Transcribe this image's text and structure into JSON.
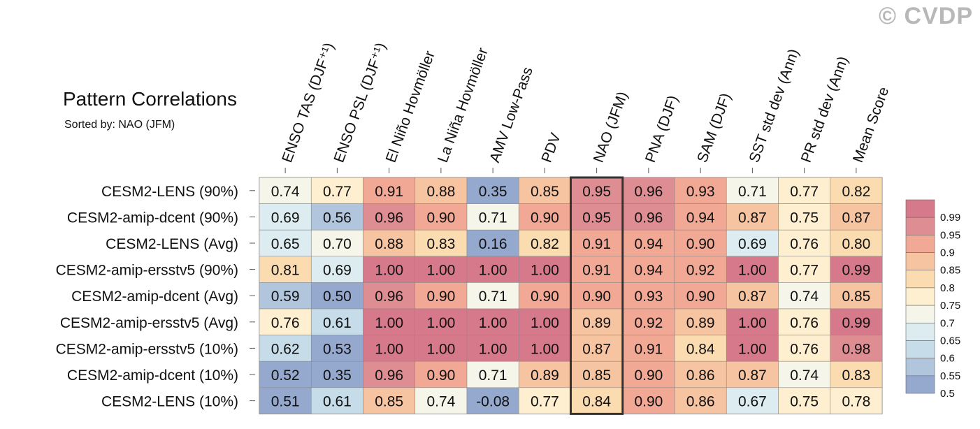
{
  "watermark": "© CVDP",
  "chart_data": {
    "type": "heatmap",
    "title": "Pattern Correlations",
    "subtitle": "Sorted by: NAO (JFM)",
    "highlighted_column": "NAO (JFM)",
    "columns": [
      "ENSO TAS (DJF⁺¹)",
      "ENSO PSL (DJF⁺¹)",
      "El Niño Hovmöller",
      "La Niña Hovmöller",
      "AMV Low-Pass",
      "PDV",
      "NAO (JFM)",
      "PNA (DJF)",
      "SAM (DJF)",
      "SST std dev (Ann)",
      "PR std dev (Ann)",
      "Mean Score"
    ],
    "rows": [
      {
        "label": "CESM2-LENS (90%)",
        "values": [
          0.74,
          0.77,
          0.91,
          0.88,
          0.35,
          0.85,
          0.95,
          0.96,
          0.93,
          0.71,
          0.77,
          0.82
        ],
        "text": [
          "0.74",
          "0.77",
          "0.91",
          "0.88",
          "0.35",
          "0.85",
          "0.95",
          "0.96",
          "0.93",
          "0.71",
          "0.77",
          "0.82"
        ]
      },
      {
        "label": "CESM2-amip-dcent (90%)",
        "values": [
          0.69,
          0.56,
          0.96,
          0.9,
          0.71,
          0.9,
          0.95,
          0.96,
          0.94,
          0.87,
          0.75,
          0.87
        ],
        "text": [
          "0.69",
          "0.56",
          "0.96",
          "0.90",
          "0.71",
          "0.90",
          "0.95",
          "0.96",
          "0.94",
          "0.87",
          "0.75",
          "0.87"
        ]
      },
      {
        "label": "CESM2-LENS (Avg)",
        "values": [
          0.65,
          0.7,
          0.88,
          0.83,
          0.16,
          0.82,
          0.91,
          0.94,
          0.9,
          0.69,
          0.76,
          0.8
        ],
        "text": [
          "0.65",
          "0.70",
          "0.88",
          "0.83",
          "0.16",
          "0.82",
          "0.91",
          "0.94",
          "0.90",
          "0.69",
          "0.76",
          "0.80"
        ]
      },
      {
        "label": "CESM2-amip-ersstv5 (90%)",
        "values": [
          0.81,
          0.69,
          1.0,
          1.0,
          1.0,
          1.0,
          0.91,
          0.94,
          0.92,
          1.0,
          0.77,
          0.99
        ],
        "text": [
          "0.81",
          "0.69",
          "1.00",
          "1.00",
          "1.00",
          "1.00",
          "0.91",
          "0.94",
          "0.92",
          "1.00",
          "0.77",
          "0.99"
        ]
      },
      {
        "label": "CESM2-amip-dcent (Avg)",
        "values": [
          0.59,
          0.5,
          0.96,
          0.9,
          0.71,
          0.9,
          0.9,
          0.93,
          0.9,
          0.87,
          0.74,
          0.85
        ],
        "text": [
          "0.59",
          "0.50",
          "0.96",
          "0.90",
          "0.71",
          "0.90",
          "0.90",
          "0.93",
          "0.90",
          "0.87",
          "0.74",
          "0.85"
        ]
      },
      {
        "label": "CESM2-amip-ersstv5 (Avg)",
        "values": [
          0.76,
          0.61,
          1.0,
          1.0,
          1.0,
          1.0,
          0.89,
          0.92,
          0.89,
          1.0,
          0.76,
          0.99
        ],
        "text": [
          "0.76",
          "0.61",
          "1.00",
          "1.00",
          "1.00",
          "1.00",
          "0.89",
          "0.92",
          "0.89",
          "1.00",
          "0.76",
          "0.99"
        ]
      },
      {
        "label": "CESM2-amip-ersstv5 (10%)",
        "values": [
          0.62,
          0.53,
          1.0,
          1.0,
          1.0,
          1.0,
          0.87,
          0.91,
          0.84,
          1.0,
          0.76,
          0.98
        ],
        "text": [
          "0.62",
          "0.53",
          "1.00",
          "1.00",
          "1.00",
          "1.00",
          "0.87",
          "0.91",
          "0.84",
          "1.00",
          "0.76",
          "0.98"
        ]
      },
      {
        "label": "CESM2-amip-dcent (10%)",
        "values": [
          0.52,
          0.35,
          0.96,
          0.9,
          0.71,
          0.89,
          0.85,
          0.9,
          0.86,
          0.87,
          0.74,
          0.83
        ],
        "text": [
          "0.52",
          "0.35",
          "0.96",
          "0.90",
          "0.71",
          "0.89",
          "0.85",
          "0.90",
          "0.86",
          "0.87",
          "0.74",
          "0.83"
        ]
      },
      {
        "label": "CESM2-LENS (10%)",
        "values": [
          0.51,
          0.61,
          0.85,
          0.74,
          -0.08,
          0.77,
          0.84,
          0.9,
          0.86,
          0.67,
          0.75,
          0.78
        ],
        "text": [
          "0.51",
          "0.61",
          "0.85",
          "0.74",
          "-0.08",
          "0.77",
          "0.84",
          "0.90",
          "0.86",
          "0.67",
          "0.75",
          "0.78"
        ]
      }
    ],
    "colorbar": {
      "levels": [
        "0.99",
        "0.95",
        "0.9",
        "0.85",
        "0.8",
        "0.75",
        "0.7",
        "0.65",
        "0.6",
        "0.55",
        "0.5"
      ],
      "thresholds": [
        0.99,
        0.95,
        0.9,
        0.85,
        0.8,
        0.75,
        0.7,
        0.65,
        0.6,
        0.55,
        0.5
      ],
      "colors": [
        "#d67a8b",
        "#de8e93",
        "#f1a995",
        "#f7c4a1",
        "#fbdbb0",
        "#fdefcf",
        "#f6f5e9",
        "#dcecf0",
        "#c6dce8",
        "#b1c6dd",
        "#95a9cf"
      ],
      "below_color": "#95a9cf"
    }
  }
}
